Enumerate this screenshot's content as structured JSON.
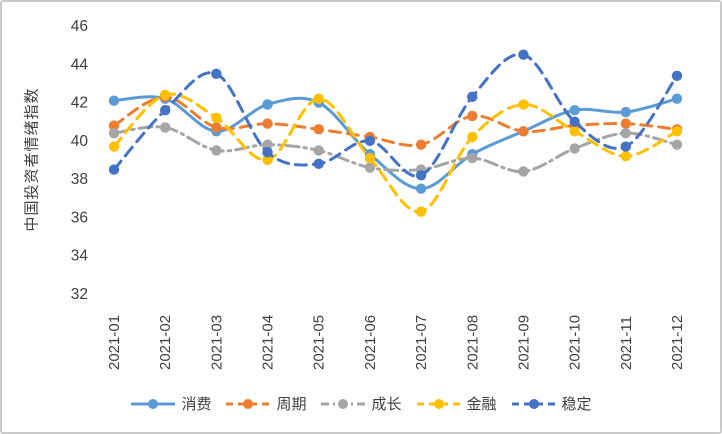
{
  "window": {
    "background": "#ffffff",
    "border_color": "#c9c9c9",
    "text_color": "#404040"
  },
  "chart_data": {
    "type": "line",
    "title": "",
    "ylabel": "中国投资者情绪指数",
    "xlabel": "",
    "ylim": [
      32,
      46
    ],
    "yticks": [
      32,
      34,
      36,
      38,
      40,
      42,
      44,
      46
    ],
    "grid": false,
    "legend_position": "bottom",
    "x": [
      "2021-01",
      "2021-02",
      "2021-03",
      "2021-04",
      "2021-05",
      "2021-06",
      "2021-07",
      "2021-08",
      "2021-09",
      "2021-10",
      "2021-11",
      "2021-12"
    ],
    "series": [
      {
        "name": "消费",
        "color": "#5B9BD5",
        "line_style": "solid",
        "marker": "circle",
        "values": [
          42.1,
          42.2,
          40.5,
          41.9,
          42.0,
          39.3,
          37.5,
          39.3,
          40.5,
          41.6,
          41.5,
          42.2
        ]
      },
      {
        "name": "周期",
        "color": "#ED7D31",
        "line_style": "dashed",
        "marker": "circle",
        "values": [
          40.8,
          42.3,
          40.7,
          40.9,
          40.6,
          40.2,
          39.8,
          41.3,
          40.5,
          40.8,
          40.9,
          40.6
        ]
      },
      {
        "name": "成长",
        "color": "#A5A5A5",
        "line_style": "dash-dot",
        "marker": "circle",
        "values": [
          40.4,
          40.7,
          39.5,
          39.8,
          39.5,
          38.6,
          38.5,
          39.1,
          38.4,
          39.6,
          40.4,
          39.8
        ]
      },
      {
        "name": "金融",
        "color": "#FFC000",
        "line_style": "dashed",
        "marker": "circle",
        "values": [
          39.7,
          42.4,
          41.2,
          39.0,
          42.2,
          39.1,
          36.3,
          40.2,
          41.9,
          40.5,
          39.2,
          40.5
        ]
      },
      {
        "name": "稳定",
        "color": "#4472C4",
        "line_style": "dashed",
        "marker": "circle",
        "values": [
          38.5,
          41.6,
          43.5,
          39.4,
          38.8,
          40.0,
          38.2,
          42.3,
          44.5,
          41.0,
          39.7,
          43.4
        ]
      }
    ]
  }
}
